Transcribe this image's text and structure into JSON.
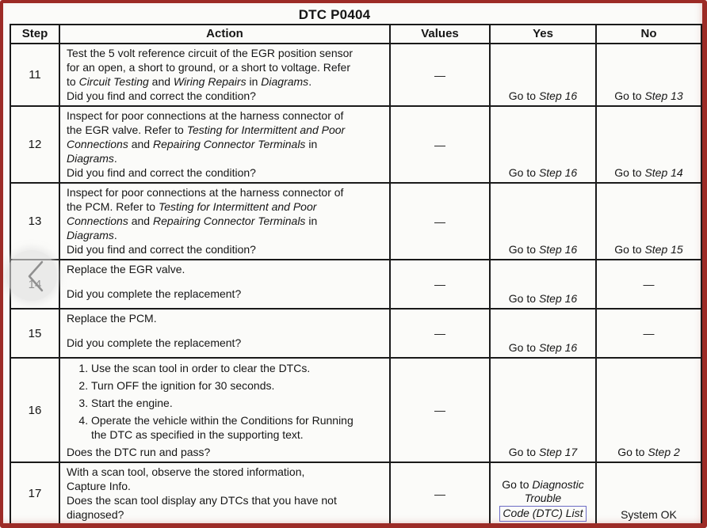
{
  "page": {
    "title": "DTC P0404"
  },
  "colors": {
    "frame": "#9c2b26",
    "grid": "#1a1a1a",
    "link_box": "#6b6bc4",
    "nav_circle": "#dedede"
  },
  "nav": {
    "back_icon": "chevron-left"
  },
  "table": {
    "headers": [
      "Step",
      "Action",
      "Values",
      "Yes",
      "No"
    ],
    "rows": [
      {
        "step": "11",
        "action": [
          {
            "text": "Test the 5 volt reference circuit of the EGR position sensor\nfor an open, a short to ground, or a short to voltage. Refer\nto "
          },
          {
            "text": "Circuit Testing",
            "italic": true
          },
          {
            "text": " and "
          },
          {
            "text": "Wiring Repairs",
            "italic": true
          },
          {
            "text": " in "
          },
          {
            "text": "Diagrams",
            "italic": true
          },
          {
            "text": "."
          }
        ],
        "question": "Did you find and correct the condition?",
        "values": "—",
        "yes": [
          {
            "text": "Go to "
          },
          {
            "text": "Step 16",
            "italic": true
          }
        ],
        "no": [
          {
            "text": "Go to "
          },
          {
            "text": "Step 13",
            "italic": true
          }
        ]
      },
      {
        "step": "12",
        "action": [
          {
            "text": "Inspect for poor connections at the harness connector of\nthe EGR valve. Refer to "
          },
          {
            "text": "Testing for Intermittent and Poor\nConnections",
            "italic": true
          },
          {
            "text": " and "
          },
          {
            "text": "Repairing Connector Terminals",
            "italic": true
          },
          {
            "text": " in\n"
          },
          {
            "text": "Diagrams",
            "italic": true
          },
          {
            "text": "."
          }
        ],
        "question": "Did you find and correct the condition?",
        "values": "—",
        "yes": [
          {
            "text": "Go to "
          },
          {
            "text": "Step 16",
            "italic": true
          }
        ],
        "no": [
          {
            "text": "Go to "
          },
          {
            "text": "Step 14",
            "italic": true
          }
        ]
      },
      {
        "step": "13",
        "action": [
          {
            "text": "Inspect for poor connections at the harness connector of\nthe PCM. Refer to "
          },
          {
            "text": "Testing for Intermittent and Poor\nConnections",
            "italic": true
          },
          {
            "text": " and "
          },
          {
            "text": "Repairing Connector Terminals",
            "italic": true
          },
          {
            "text": " in\n"
          },
          {
            "text": "Diagrams",
            "italic": true
          },
          {
            "text": "."
          }
        ],
        "question": "Did you find and correct the condition?",
        "values": "—",
        "yes": [
          {
            "text": "Go to "
          },
          {
            "text": "Step 16",
            "italic": true
          }
        ],
        "no": [
          {
            "text": "Go to "
          },
          {
            "text": "Step 15",
            "italic": true
          }
        ]
      },
      {
        "step": "14",
        "action": [
          {
            "text": "Replace the EGR valve."
          }
        ],
        "question": "Did you complete the replacement?",
        "values": "—",
        "yes": [
          {
            "text": "Go to "
          },
          {
            "text": "Step 16",
            "italic": true
          }
        ],
        "no": [
          {
            "text": "—"
          }
        ]
      },
      {
        "step": "15",
        "action": [
          {
            "text": "Replace the PCM."
          }
        ],
        "question": "Did you complete the replacement?",
        "values": "—",
        "yes": [
          {
            "text": "Go to "
          },
          {
            "text": "Step 16",
            "italic": true
          }
        ],
        "no": [
          {
            "text": "—"
          }
        ]
      },
      {
        "step": "16",
        "action_list": [
          "Use the scan tool in order to clear the DTCs.",
          "Turn OFF the ignition for 30 seconds.",
          "Start the engine.",
          "Operate the vehicle within the Conditions for Running\nthe DTC as specified in the supporting text."
        ],
        "question": "Does the DTC run and pass?",
        "values": "—",
        "yes": [
          {
            "text": "Go to "
          },
          {
            "text": "Step 17",
            "italic": true
          }
        ],
        "no": [
          {
            "text": "Go to "
          },
          {
            "text": "Step 2",
            "italic": true
          }
        ]
      },
      {
        "step": "17",
        "action": [
          {
            "text": "With a scan tool, observe the stored information,\nCapture Info."
          }
        ],
        "question": "Does the scan tool display any DTCs that you have not\ndiagnosed?",
        "values": "—",
        "yes": [
          {
            "text": "Go to "
          },
          {
            "text": "Diagnostic\nTrouble\n",
            "italic": true
          },
          {
            "text": "Code (DTC) List",
            "italic": true,
            "boxed": true
          }
        ],
        "no": [
          {
            "text": "System OK"
          }
        ]
      }
    ]
  }
}
